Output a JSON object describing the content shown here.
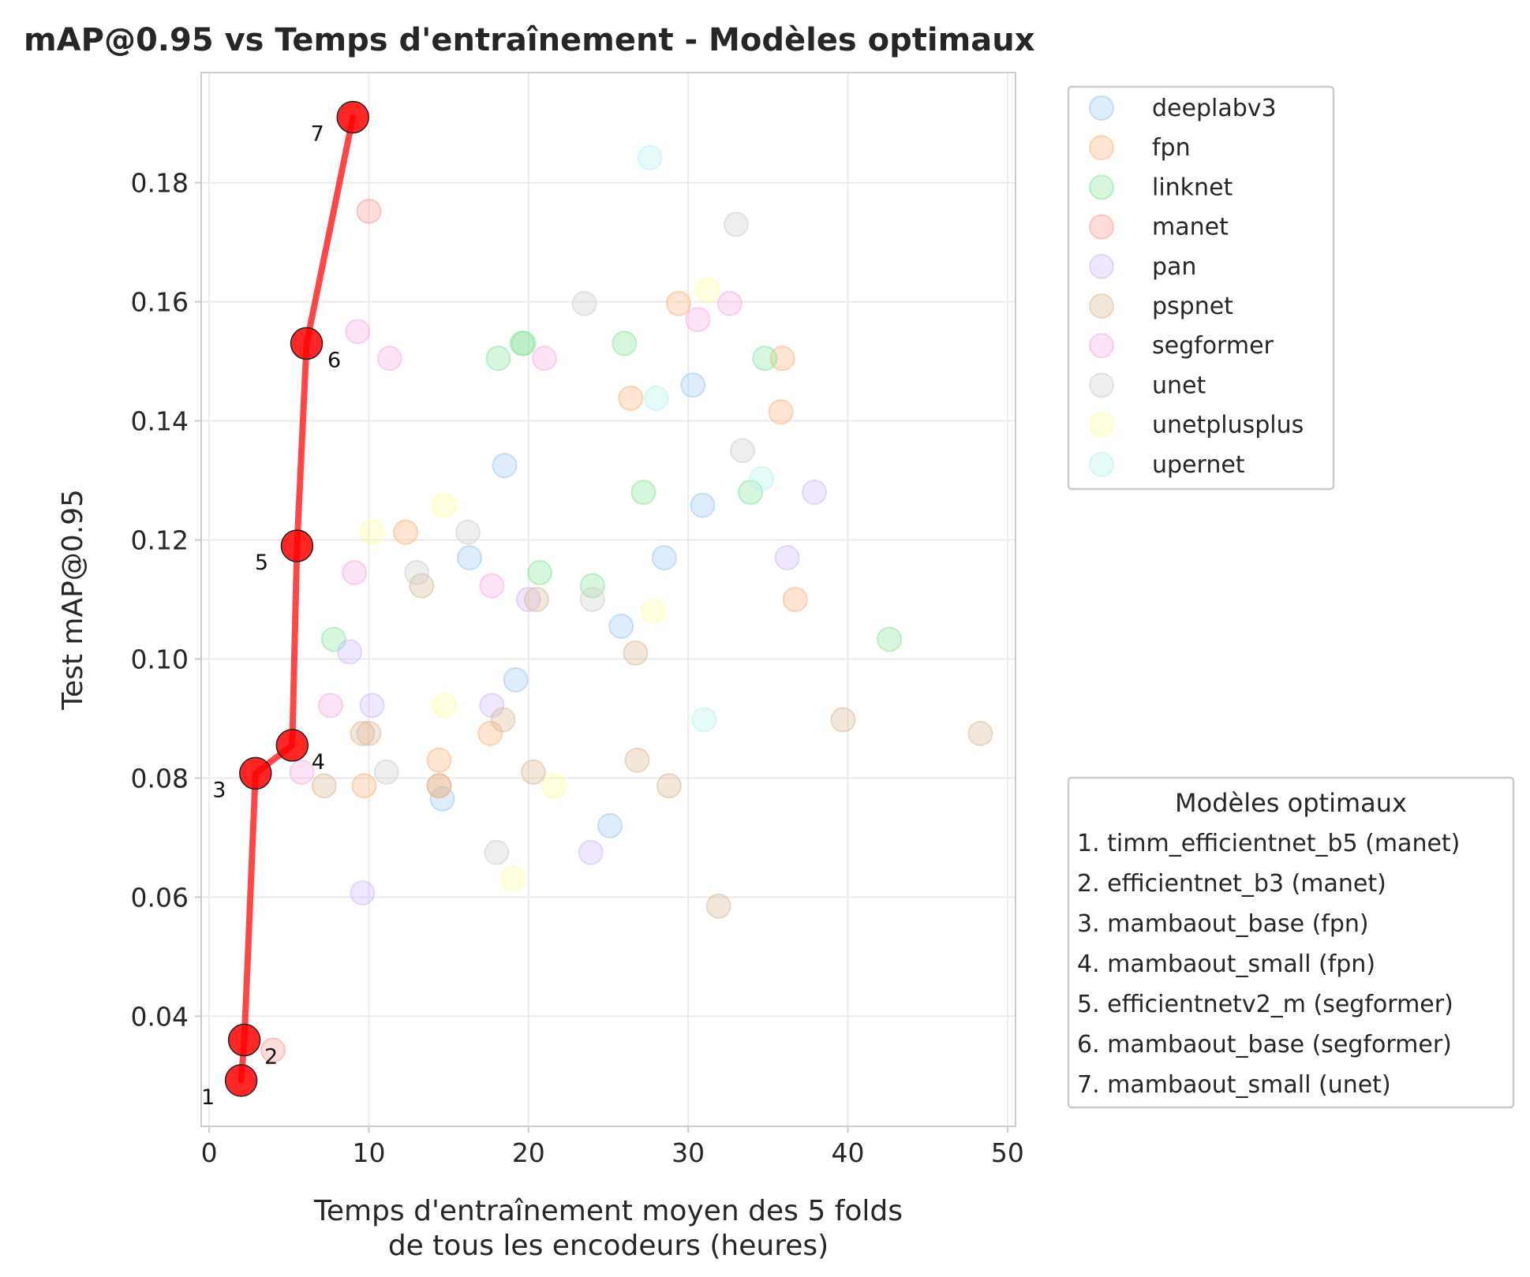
{
  "chart_data": {
    "type": "scatter",
    "title": "mAP@0.95 vs Temps d'entraînement - Modèles optimaux",
    "xlabel": [
      "Temps d'entraînement moyen des 5 folds",
      "de tous les encodeurs (heures)"
    ],
    "ylabel": "Test mAP@0.95",
    "xlim": [
      -0.5,
      50.5
    ],
    "ylim": [
      0.0215,
      0.1985
    ],
    "xticks": [
      0,
      10,
      20,
      30,
      40,
      50
    ],
    "yticks": [
      0.04,
      0.06,
      0.08,
      0.1,
      0.12,
      0.14,
      0.16,
      0.18
    ],
    "ytick_labels": [
      "0.04",
      "0.06",
      "0.08",
      "0.10",
      "0.12",
      "0.14",
      "0.16",
      "0.18"
    ],
    "grid": true,
    "legend_position": "outside-top-right",
    "series": [
      {
        "name": "deeplabv3",
        "color": "#a1c9f4",
        "x": [
          18.5,
          16.3,
          19.2,
          14.6,
          25.8,
          30.3,
          30.9,
          28.5,
          25.1
        ],
        "y": [
          0.1325,
          0.117,
          0.0965,
          0.0765,
          0.1055,
          0.146,
          0.1258,
          0.117,
          0.072
        ]
      },
      {
        "name": "fpn",
        "color": "#ffb482",
        "x": [
          12.3,
          9.7,
          14.4,
          17.6,
          26.4,
          29.4,
          35.9,
          35.8,
          36.7,
          14.4
        ],
        "y": [
          0.1213,
          0.0787,
          0.083,
          0.0875,
          0.1438,
          0.1597,
          0.1505,
          0.1415,
          0.11,
          0.0787
        ]
      },
      {
        "name": "linknet",
        "color": "#8de5a1",
        "x": [
          7.8,
          18.1,
          19.7,
          20.7,
          24.0,
          26.0,
          27.2,
          33.9,
          34.8,
          42.6,
          19.6
        ],
        "y": [
          0.1033,
          0.1505,
          0.153,
          0.1145,
          0.1123,
          0.153,
          0.128,
          0.128,
          0.1505,
          0.1033,
          0.153
        ]
      },
      {
        "name": "manet",
        "color": "#ff9f9b",
        "x": [
          10.0,
          4.0
        ],
        "y": [
          0.1752,
          0.0343
        ]
      },
      {
        "name": "pan",
        "color": "#d0bbff",
        "x": [
          8.8,
          10.2,
          9.6,
          17.7,
          20.0,
          23.9,
          36.2,
          37.9
        ],
        "y": [
          0.1012,
          0.0922,
          0.0607,
          0.0922,
          0.11,
          0.0675,
          0.117,
          0.128
        ]
      },
      {
        "name": "pspnet",
        "color": "#debb9b",
        "x": [
          7.2,
          9.6,
          10.0,
          13.3,
          14.4,
          18.4,
          20.3,
          20.5,
          26.7,
          26.8,
          28.8,
          31.9,
          39.7,
          48.3
        ],
        "y": [
          0.0787,
          0.0875,
          0.0875,
          0.1123,
          0.0787,
          0.0898,
          0.081,
          0.11,
          0.101,
          0.083,
          0.0787,
          0.0585,
          0.0898,
          0.0875
        ]
      },
      {
        "name": "segformer",
        "color": "#fab0e4",
        "x": [
          5.8,
          7.6,
          9.1,
          9.3,
          11.3,
          17.7,
          21.0,
          30.6,
          32.6
        ],
        "y": [
          0.081,
          0.0922,
          0.1145,
          0.155,
          0.1505,
          0.1123,
          0.1505,
          0.157,
          0.1597
        ]
      },
      {
        "name": "unet",
        "color": "#cfcfcf",
        "x": [
          11.1,
          13.0,
          16.2,
          18.0,
          23.5,
          24.0,
          33.0,
          33.4
        ],
        "y": [
          0.081,
          0.1145,
          0.1213,
          0.0675,
          0.1597,
          0.11,
          0.173,
          0.135
        ]
      },
      {
        "name": "unetplusplus",
        "color": "#fffea3",
        "x": [
          10.2,
          14.7,
          14.7,
          19.0,
          21.6,
          27.8,
          31.2
        ],
        "y": [
          0.1213,
          0.1258,
          0.0922,
          0.0632,
          0.0787,
          0.108,
          0.162
        ]
      },
      {
        "name": "upernet",
        "color": "#b9f2f0",
        "x": [
          27.6,
          28.0,
          31.0,
          34.6
        ],
        "y": [
          0.1842,
          0.1438,
          0.0898,
          0.1303
        ]
      }
    ],
    "pareto": {
      "color": "#ff0000",
      "points": [
        {
          "n": "1",
          "x": 2.0,
          "y": 0.0292
        },
        {
          "n": "2",
          "x": 2.2,
          "y": 0.036
        },
        {
          "n": "3",
          "x": 2.9,
          "y": 0.0808
        },
        {
          "n": "4",
          "x": 5.2,
          "y": 0.0855
        },
        {
          "n": "5",
          "x": 5.5,
          "y": 0.119
        },
        {
          "n": "6",
          "x": 6.1,
          "y": 0.153
        },
        {
          "n": "7",
          "x": 9.0,
          "y": 0.191
        }
      ]
    },
    "optimal_legend": {
      "title": "Modèles optimaux",
      "items": [
        "1. timm_efficientnet_b5 (manet)",
        "2. efficientnet_b3 (manet)",
        "3. mambaout_base (fpn)",
        "4. mambaout_small (fpn)",
        "5. efficientnetv2_m (segformer)",
        "6. mambaout_base (segformer)",
        "7. mambaout_small (unet)"
      ]
    }
  }
}
